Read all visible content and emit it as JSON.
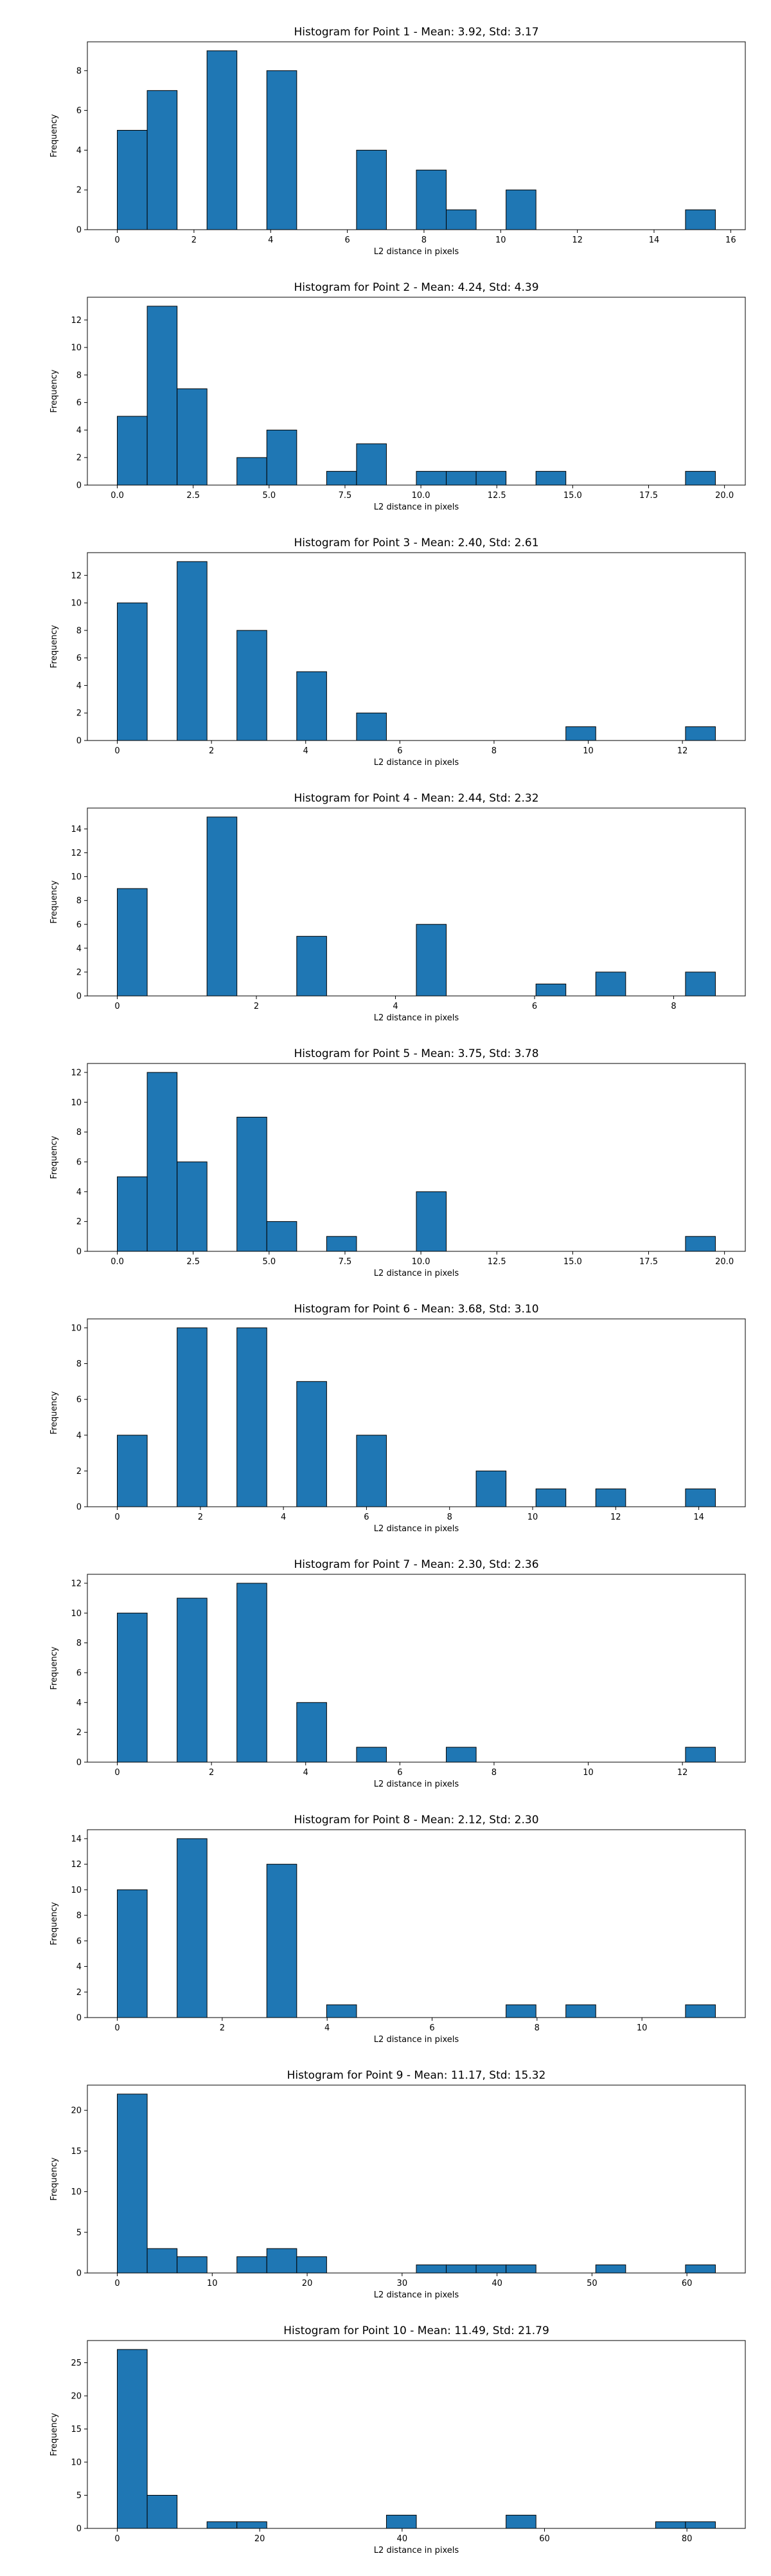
{
  "bar_color": "#1f77b4",
  "edge_color": "#000000",
  "chart_data": [
    {
      "type": "bar",
      "title": "Histogram for Point 1 - Mean: 3.92, Std: 3.17",
      "xlabel": "L2 distance in pixels",
      "ylabel": "Frequency",
      "bin_start": 0,
      "bin_width": 0.78,
      "counts": [
        5,
        7,
        0,
        9,
        0,
        8,
        0,
        0,
        4,
        0,
        3,
        1,
        0,
        2,
        0,
        0,
        0,
        0,
        0,
        1
      ],
      "xlim": [
        -0.78,
        16.38
      ],
      "ylim": [
        0,
        9.45
      ],
      "xticks": [
        0,
        2,
        4,
        6,
        8,
        10,
        12,
        14,
        16
      ],
      "xtick_labels": [
        "0",
        "2",
        "4",
        "6",
        "8",
        "10",
        "12",
        "14",
        "16"
      ],
      "yticks": [
        0,
        2,
        4,
        6,
        8
      ],
      "ytick_labels": [
        "0",
        "2",
        "4",
        "6",
        "8"
      ]
    },
    {
      "type": "bar",
      "title": "Histogram for Point 2 - Mean: 4.24, Std: 4.39",
      "xlabel": "L2 distance in pixels",
      "ylabel": "Frequency",
      "bin_start": 0,
      "bin_width": 0.985,
      "counts": [
        5,
        13,
        7,
        0,
        2,
        4,
        0,
        1,
        3,
        0,
        1,
        1,
        1,
        0,
        1,
        0,
        0,
        0,
        0,
        1
      ],
      "xlim": [
        -0.985,
        20.685
      ],
      "ylim": [
        0,
        13.65
      ],
      "xticks": [
        0,
        2.5,
        5,
        7.5,
        10,
        12.5,
        15,
        17.5,
        20
      ],
      "xtick_labels": [
        "0.0",
        "2.5",
        "5.0",
        "7.5",
        "10.0",
        "12.5",
        "15.0",
        "17.5",
        "20.0"
      ],
      "yticks": [
        0,
        2,
        4,
        6,
        8,
        10,
        12
      ],
      "ytick_labels": [
        "0",
        "2",
        "4",
        "6",
        "8",
        "10",
        "12"
      ]
    },
    {
      "type": "bar",
      "title": "Histogram for Point 3 - Mean: 2.40, Std: 2.61",
      "xlabel": "L2 distance in pixels",
      "ylabel": "Frequency",
      "bin_start": 0,
      "bin_width": 0.635,
      "counts": [
        10,
        0,
        13,
        0,
        8,
        0,
        5,
        0,
        2,
        0,
        0,
        0,
        0,
        0,
        0,
        1,
        0,
        0,
        0,
        1
      ],
      "xlim": [
        -0.635,
        13.335
      ],
      "ylim": [
        0,
        13.65
      ],
      "xticks": [
        0,
        2,
        4,
        6,
        8,
        10,
        12
      ],
      "xtick_labels": [
        "0",
        "2",
        "4",
        "6",
        "8",
        "10",
        "12"
      ],
      "yticks": [
        0,
        2,
        4,
        6,
        8,
        10,
        12
      ],
      "ytick_labels": [
        "0",
        "2",
        "4",
        "6",
        "8",
        "10",
        "12"
      ]
    },
    {
      "type": "bar",
      "title": "Histogram for Point 4 - Mean: 2.44, Std: 2.32",
      "xlabel": "L2 distance in pixels",
      "ylabel": "Frequency",
      "bin_start": 0,
      "bin_width": 0.43,
      "counts": [
        9,
        0,
        0,
        15,
        0,
        0,
        5,
        0,
        0,
        0,
        6,
        0,
        0,
        0,
        1,
        0,
        2,
        0,
        0,
        2
      ],
      "xlim": [
        -0.43,
        9.03
      ],
      "ylim": [
        0,
        15.75
      ],
      "xticks": [
        0,
        2,
        4,
        6,
        8
      ],
      "xtick_labels": [
        "0",
        "2",
        "4",
        "6",
        "8"
      ],
      "yticks": [
        0,
        2,
        4,
        6,
        8,
        10,
        12,
        14
      ],
      "ytick_labels": [
        "0",
        "2",
        "4",
        "6",
        "8",
        "10",
        "12",
        "14"
      ]
    },
    {
      "type": "bar",
      "title": "Histogram for Point 5 - Mean: 3.75, Std: 3.78",
      "xlabel": "L2 distance in pixels",
      "ylabel": "Frequency",
      "bin_start": 0,
      "bin_width": 0.985,
      "counts": [
        5,
        12,
        6,
        0,
        9,
        2,
        0,
        1,
        0,
        0,
        4,
        0,
        0,
        0,
        0,
        0,
        0,
        0,
        0,
        1
      ],
      "xlim": [
        -0.985,
        20.685
      ],
      "ylim": [
        0,
        12.6
      ],
      "xticks": [
        0,
        2.5,
        5,
        7.5,
        10,
        12.5,
        15,
        17.5,
        20
      ],
      "xtick_labels": [
        "0.0",
        "2.5",
        "5.0",
        "7.5",
        "10.0",
        "12.5",
        "15.0",
        "17.5",
        "20.0"
      ],
      "yticks": [
        0,
        2,
        4,
        6,
        8,
        10,
        12
      ],
      "ytick_labels": [
        "0",
        "2",
        "4",
        "6",
        "8",
        "10",
        "12"
      ]
    },
    {
      "type": "bar",
      "title": "Histogram for Point 6 - Mean: 3.68, Std: 3.10",
      "xlabel": "L2 distance in pixels",
      "ylabel": "Frequency",
      "bin_start": 0,
      "bin_width": 0.72,
      "counts": [
        4,
        0,
        10,
        0,
        10,
        0,
        7,
        0,
        4,
        0,
        0,
        0,
        2,
        0,
        1,
        0,
        1,
        0,
        0,
        1
      ],
      "xlim": [
        -0.72,
        15.12
      ],
      "ylim": [
        0,
        10.5
      ],
      "xticks": [
        0,
        2,
        4,
        6,
        8,
        10,
        12,
        14
      ],
      "xtick_labels": [
        "0",
        "2",
        "4",
        "6",
        "8",
        "10",
        "12",
        "14"
      ],
      "yticks": [
        0,
        2,
        4,
        6,
        8,
        10
      ],
      "ytick_labels": [
        "0",
        "2",
        "4",
        "6",
        "8",
        "10"
      ]
    },
    {
      "type": "bar",
      "title": "Histogram for Point 7 - Mean: 2.30, Std: 2.36",
      "xlabel": "L2 distance in pixels",
      "ylabel": "Frequency",
      "bin_start": 0,
      "bin_width": 0.635,
      "counts": [
        10,
        0,
        11,
        0,
        12,
        0,
        4,
        0,
        1,
        0,
        0,
        1,
        0,
        0,
        0,
        0,
        0,
        0,
        0,
        1
      ],
      "xlim": [
        -0.635,
        13.335
      ],
      "ylim": [
        0,
        12.6
      ],
      "xticks": [
        0,
        2,
        4,
        6,
        8,
        10,
        12
      ],
      "xtick_labels": [
        "0",
        "2",
        "4",
        "6",
        "8",
        "10",
        "12"
      ],
      "yticks": [
        0,
        2,
        4,
        6,
        8,
        10,
        12
      ],
      "ytick_labels": [
        "0",
        "2",
        "4",
        "6",
        "8",
        "10",
        "12"
      ]
    },
    {
      "type": "bar",
      "title": "Histogram for Point 8 - Mean: 2.12, Std: 2.30",
      "xlabel": "L2 distance in pixels",
      "ylabel": "Frequency",
      "bin_start": 0,
      "bin_width": 0.57,
      "counts": [
        10,
        0,
        14,
        0,
        0,
        12,
        0,
        1,
        0,
        0,
        0,
        0,
        0,
        1,
        0,
        1,
        0,
        0,
        0,
        1
      ],
      "xlim": [
        -0.57,
        11.97
      ],
      "ylim": [
        0,
        14.7
      ],
      "xticks": [
        0,
        2,
        4,
        6,
        8,
        10
      ],
      "xtick_labels": [
        "0",
        "2",
        "4",
        "6",
        "8",
        "10"
      ],
      "yticks": [
        0,
        2,
        4,
        6,
        8,
        10,
        12,
        14
      ],
      "ytick_labels": [
        "0",
        "2",
        "4",
        "6",
        "8",
        "10",
        "12",
        "14"
      ]
    },
    {
      "type": "bar",
      "title": "Histogram for Point 9 - Mean: 11.17, Std: 15.32",
      "xlabel": "L2 distance in pixels",
      "ylabel": "Frequency",
      "bin_start": 0,
      "bin_width": 3.15,
      "counts": [
        22,
        3,
        2,
        0,
        2,
        3,
        2,
        0,
        0,
        0,
        1,
        1,
        1,
        1,
        0,
        0,
        1,
        0,
        0,
        1
      ],
      "xlim": [
        -3.15,
        66.15
      ],
      "ylim": [
        0,
        23.1
      ],
      "xticks": [
        0,
        10,
        20,
        30,
        40,
        50,
        60
      ],
      "xtick_labels": [
        "0",
        "10",
        "20",
        "30",
        "40",
        "50",
        "60"
      ],
      "yticks": [
        0,
        5,
        10,
        15,
        20
      ],
      "ytick_labels": [
        "0",
        "5",
        "10",
        "15",
        "20"
      ]
    },
    {
      "type": "bar",
      "title": "Histogram for Point 10 - Mean: 11.49, Std: 21.79",
      "xlabel": "L2 distance in pixels",
      "ylabel": "Frequency",
      "bin_start": 0,
      "bin_width": 4.2,
      "counts": [
        27,
        5,
        0,
        1,
        1,
        0,
        0,
        0,
        0,
        2,
        0,
        0,
        0,
        2,
        0,
        0,
        0,
        0,
        1,
        1
      ],
      "xlim": [
        -4.2,
        88.2
      ],
      "ylim": [
        0,
        28.35
      ],
      "xticks": [
        0,
        20,
        40,
        60,
        80
      ],
      "xtick_labels": [
        "0",
        "20",
        "40",
        "60",
        "80"
      ],
      "yticks": [
        0,
        5,
        10,
        15,
        20,
        25
      ],
      "ytick_labels": [
        "0",
        "5",
        "10",
        "15",
        "20",
        "25"
      ]
    }
  ]
}
